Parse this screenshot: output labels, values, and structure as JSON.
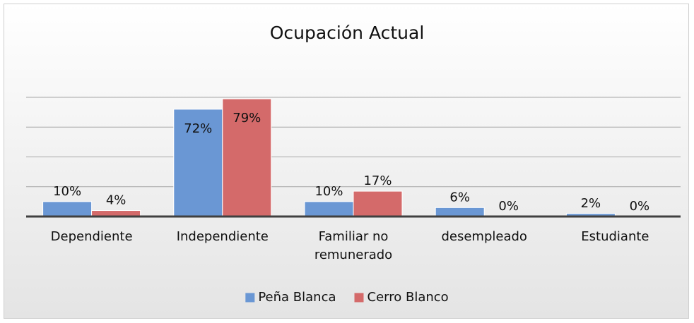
{
  "chart_data": {
    "type": "bar",
    "title": "Ocupación Actual",
    "categories": [
      "Dependiente",
      "Independiente",
      "Familiar no remunerado",
      "desempleado",
      "Estudiante"
    ],
    "series": [
      {
        "name": "Peña Blanca",
        "color": "#6a97d4",
        "values": [
          10,
          72,
          10,
          6,
          2
        ],
        "value_labels": [
          "10%",
          "72%",
          "10%",
          "6%",
          "2%"
        ]
      },
      {
        "name": "Cerro Blanco",
        "color": "#d46a6a",
        "values": [
          4,
          79,
          17,
          0,
          0
        ],
        "value_labels": [
          "4%",
          "79%",
          "17%",
          "0%",
          "0%"
        ]
      }
    ],
    "ylim": [
      0,
      80
    ],
    "yticks": [
      0,
      20,
      40,
      60,
      80
    ],
    "grid": true,
    "legend": "bottom"
  }
}
